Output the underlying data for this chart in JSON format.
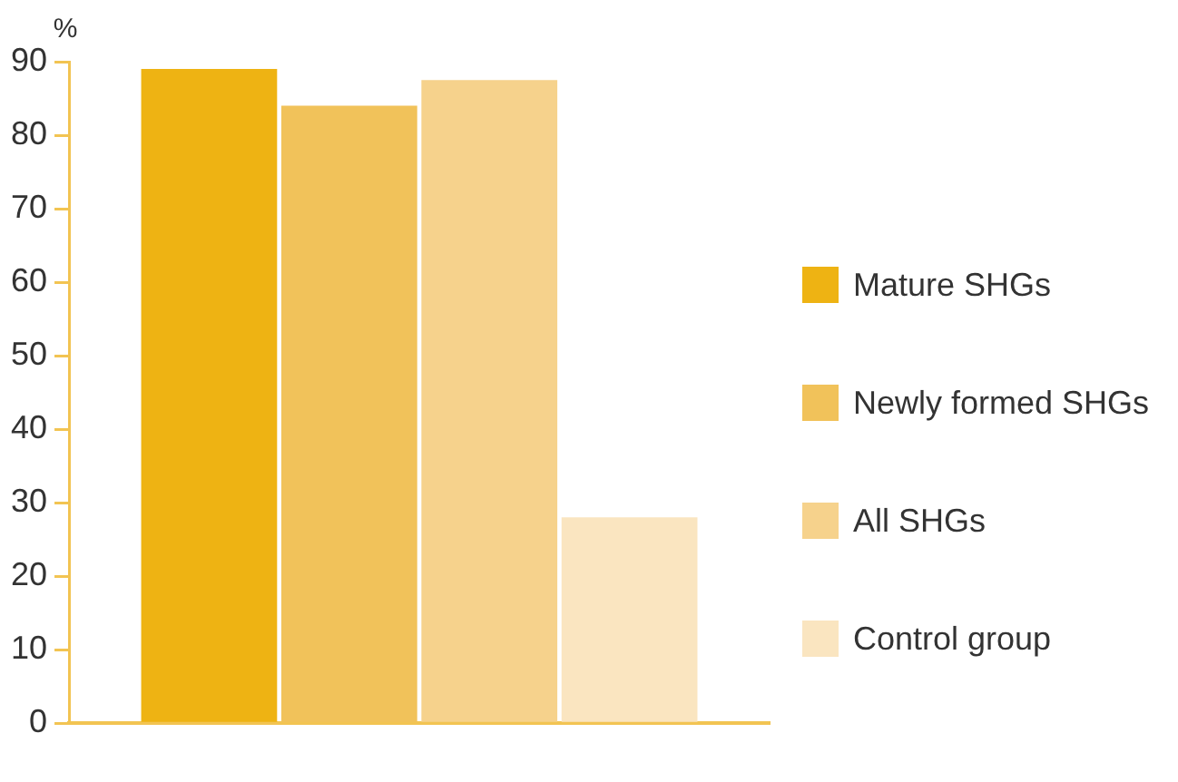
{
  "chart_data": {
    "type": "bar",
    "ylabel": "%",
    "categories": [
      null
    ],
    "series": [
      {
        "name": "Mature SHGs",
        "color": "#eeb313",
        "values": [
          89
        ]
      },
      {
        "name": "Newly formed SHGs",
        "color": "#f1c25a",
        "values": [
          84
        ]
      },
      {
        "name": "All SHGs",
        "color": "#f6d28c",
        "values": [
          87.5
        ]
      },
      {
        "name": "Control group",
        "color": "#fae5c0",
        "values": [
          28
        ]
      }
    ],
    "ylim": [
      0,
      90
    ],
    "yticks": [
      0,
      10,
      20,
      30,
      40,
      50,
      60,
      70,
      80,
      90
    ],
    "grid": false,
    "legend": "right"
  }
}
